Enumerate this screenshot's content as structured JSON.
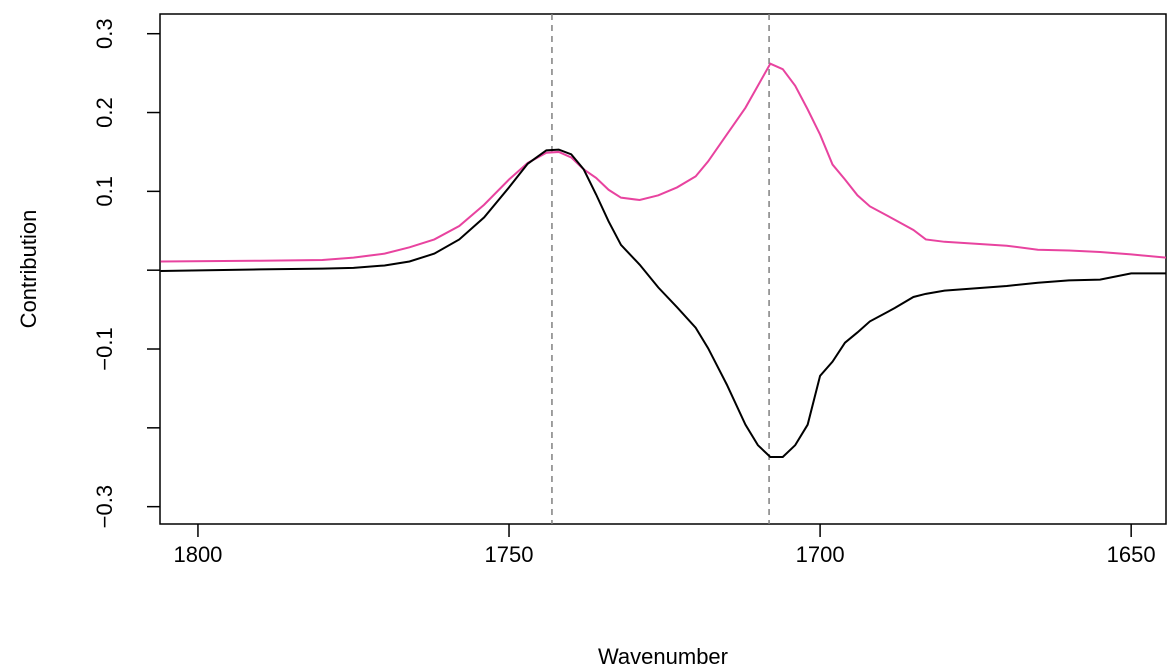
{
  "chart_data": {
    "type": "line",
    "x_label": "Wavenumber",
    "y_label": "Contribution",
    "x": [
      1806,
      1790,
      1780,
      1775,
      1770,
      1766,
      1762,
      1758,
      1754,
      1750,
      1747,
      1744,
      1742,
      1740,
      1738,
      1736,
      1734,
      1732,
      1729,
      1726,
      1723,
      1720,
      1718,
      1715,
      1712,
      1710,
      1708,
      1706,
      1704,
      1702,
      1700,
      1698,
      1696,
      1694,
      1692,
      1688,
      1685,
      1683,
      1680,
      1670,
      1665,
      1660,
      1655,
      1650,
      1644.4
    ],
    "series": [
      {
        "color": "#e8439f",
        "values": [
          0.011,
          0.012,
          0.013,
          0.016,
          0.021,
          0.029,
          0.039,
          0.056,
          0.083,
          0.115,
          0.136,
          0.149,
          0.15,
          0.143,
          0.128,
          0.117,
          0.102,
          0.092,
          0.089,
          0.095,
          0.105,
          0.119,
          0.138,
          0.172,
          0.206,
          0.234,
          0.262,
          0.255,
          0.234,
          0.204,
          0.172,
          0.134,
          0.115,
          0.095,
          0.081,
          0.064,
          0.051,
          0.039,
          0.036,
          0.031,
          0.026,
          0.025,
          0.023,
          0.02,
          0.016
        ]
      },
      {
        "color": "#000000",
        "values": [
          -0.001,
          0.001,
          0.002,
          0.003,
          0.006,
          0.011,
          0.021,
          0.039,
          0.067,
          0.105,
          0.135,
          0.152,
          0.153,
          0.147,
          0.128,
          0.096,
          0.062,
          0.032,
          0.007,
          -0.022,
          -0.047,
          -0.073,
          -0.099,
          -0.145,
          -0.196,
          -0.222,
          -0.237,
          -0.237,
          -0.222,
          -0.196,
          -0.134,
          -0.116,
          -0.092,
          -0.079,
          -0.065,
          -0.048,
          -0.034,
          -0.03,
          -0.026,
          -0.02,
          -0.016,
          -0.013,
          -0.012,
          -0.004,
          -0.004
        ]
      }
    ],
    "vlines": [
      1743.1,
      1708.2
    ],
    "vline_color": "#808080",
    "xlim": [
      1806.1,
      1644.4
    ],
    "xticks": [
      1800,
      1750,
      1700,
      1650
    ],
    "ylim": [
      -0.322,
      0.325
    ],
    "yticks": [
      {
        "value": -0.3,
        "label": "−0.3"
      },
      {
        "value": -0.2,
        "label": null
      },
      {
        "value": -0.1,
        "label": "−0.1"
      },
      {
        "value": 0,
        "label": null
      },
      0.1,
      0.2,
      0.3
    ]
  }
}
